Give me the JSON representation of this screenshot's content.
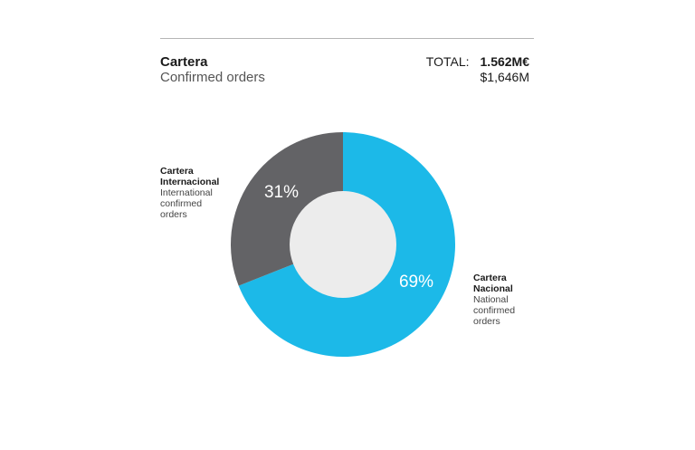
{
  "header": {
    "title": "Cartera",
    "subtitle": "Confirmed orders",
    "total_label": "TOTAL:",
    "total_eur": "1.562M€",
    "total_usd": "$1,646M"
  },
  "colors": {
    "nacional": "#1cb9e8",
    "internacional": "#636366",
    "center": "#ececec"
  },
  "chart_data": {
    "type": "pie",
    "donut": true,
    "series": [
      {
        "name": "Cartera Nacional",
        "label_lines": [
          "Cartera",
          "Nacional"
        ],
        "description_lines": [
          "National",
          "confirmed",
          "orders"
        ],
        "value": 69,
        "display": "69%",
        "color": "#1cb9e8"
      },
      {
        "name": "Cartera Internacional",
        "label_lines": [
          "Cartera",
          "Internacional"
        ],
        "description_lines": [
          "International",
          "confirmed",
          "orders"
        ],
        "value": 31,
        "display": "31%",
        "color": "#636366"
      }
    ]
  }
}
